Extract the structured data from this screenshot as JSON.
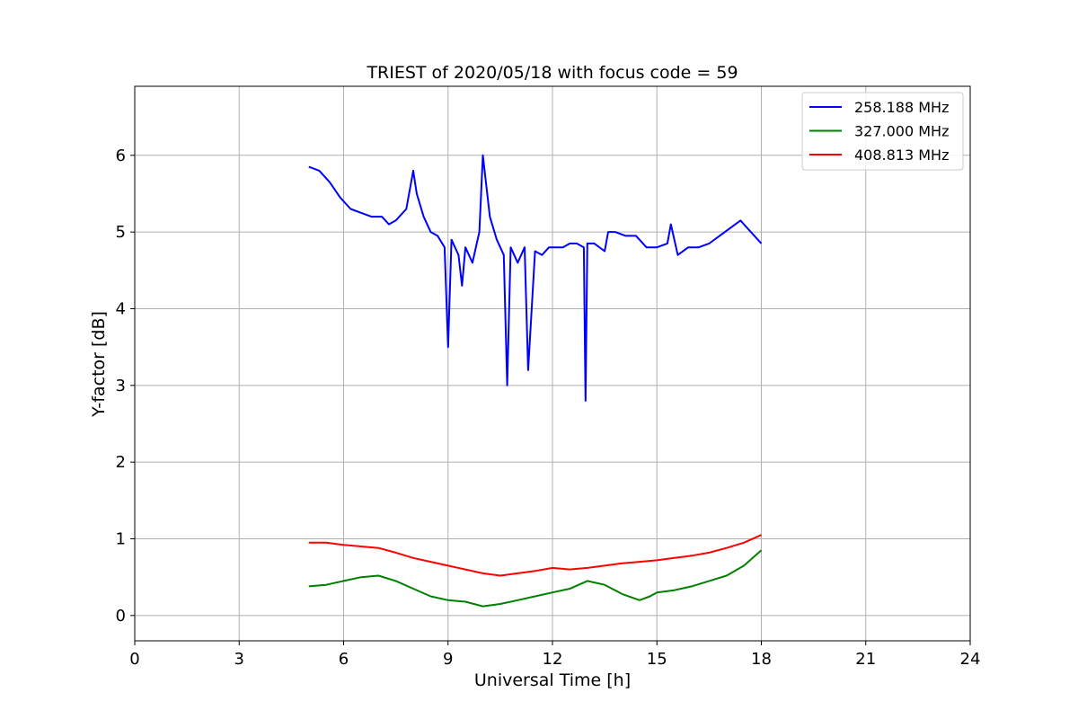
{
  "chart_data": {
    "type": "line",
    "title": "TRIEST of 2020/05/18 with focus code = 59",
    "xlabel": "Universal Time [h]",
    "ylabel": "Y-factor [dB]",
    "xlim": [
      0,
      24
    ],
    "ylim": [
      -0.33,
      6.9
    ],
    "xticks": [
      0,
      3,
      6,
      9,
      12,
      15,
      18,
      21,
      24
    ],
    "yticks": [
      0,
      1,
      2,
      3,
      4,
      5,
      6
    ],
    "grid": true,
    "legend_position": "top-right",
    "series": [
      {
        "name": "258.188 MHz",
        "color": "#0000ff",
        "x": [
          5.0,
          5.3,
          5.6,
          5.9,
          6.2,
          6.5,
          6.8,
          7.1,
          7.3,
          7.5,
          7.8,
          8.0,
          8.1,
          8.3,
          8.5,
          8.7,
          8.9,
          9.0,
          9.1,
          9.3,
          9.4,
          9.5,
          9.7,
          9.9,
          10.0,
          10.2,
          10.4,
          10.6,
          10.7,
          10.8,
          11.0,
          11.2,
          11.3,
          11.5,
          11.7,
          11.9,
          12.1,
          12.3,
          12.5,
          12.7,
          12.9,
          12.95,
          13.0,
          13.2,
          13.5,
          13.6,
          13.8,
          14.1,
          14.4,
          14.7,
          15.0,
          15.3,
          15.4,
          15.6,
          15.9,
          16.2,
          16.5,
          16.8,
          17.1,
          17.4,
          17.6,
          17.8,
          18.0
        ],
        "y": [
          5.85,
          5.8,
          5.65,
          5.45,
          5.3,
          5.25,
          5.2,
          5.2,
          5.1,
          5.15,
          5.3,
          5.8,
          5.5,
          5.2,
          5.0,
          4.95,
          4.8,
          3.5,
          4.9,
          4.7,
          4.3,
          4.8,
          4.6,
          5.0,
          6.0,
          5.2,
          4.9,
          4.7,
          3.0,
          4.8,
          4.6,
          4.8,
          3.2,
          4.75,
          4.7,
          4.8,
          4.8,
          4.8,
          4.85,
          4.85,
          4.8,
          2.8,
          4.85,
          4.85,
          4.75,
          5.0,
          5.0,
          4.95,
          4.95,
          4.8,
          4.8,
          4.85,
          5.1,
          4.7,
          4.8,
          4.8,
          4.85,
          4.95,
          5.05,
          5.15,
          5.05,
          4.95,
          4.85
        ]
      },
      {
        "name": "327.000 MHz",
        "color": "#008000",
        "x": [
          5.0,
          5.5,
          6.0,
          6.5,
          7.0,
          7.5,
          8.0,
          8.5,
          9.0,
          9.5,
          10.0,
          10.5,
          11.0,
          11.5,
          12.0,
          12.5,
          13.0,
          13.5,
          14.0,
          14.5,
          14.8,
          15.0,
          15.5,
          16.0,
          16.5,
          17.0,
          17.5,
          18.0
        ],
        "y": [
          0.38,
          0.4,
          0.45,
          0.5,
          0.52,
          0.45,
          0.35,
          0.25,
          0.2,
          0.18,
          0.12,
          0.15,
          0.2,
          0.25,
          0.3,
          0.35,
          0.45,
          0.4,
          0.28,
          0.2,
          0.25,
          0.3,
          0.33,
          0.38,
          0.45,
          0.52,
          0.65,
          0.85
        ]
      },
      {
        "name": "408.813 MHz",
        "color": "#ff0000",
        "x": [
          5.0,
          5.5,
          6.0,
          6.5,
          7.0,
          7.5,
          8.0,
          8.5,
          9.0,
          9.5,
          10.0,
          10.5,
          11.0,
          11.5,
          12.0,
          12.5,
          13.0,
          13.5,
          14.0,
          14.5,
          15.0,
          15.5,
          16.0,
          16.5,
          17.0,
          17.5,
          18.0
        ],
        "y": [
          0.95,
          0.95,
          0.92,
          0.9,
          0.88,
          0.82,
          0.75,
          0.7,
          0.65,
          0.6,
          0.55,
          0.52,
          0.55,
          0.58,
          0.62,
          0.6,
          0.62,
          0.65,
          0.68,
          0.7,
          0.72,
          0.75,
          0.78,
          0.82,
          0.88,
          0.95,
          1.05
        ]
      }
    ]
  }
}
